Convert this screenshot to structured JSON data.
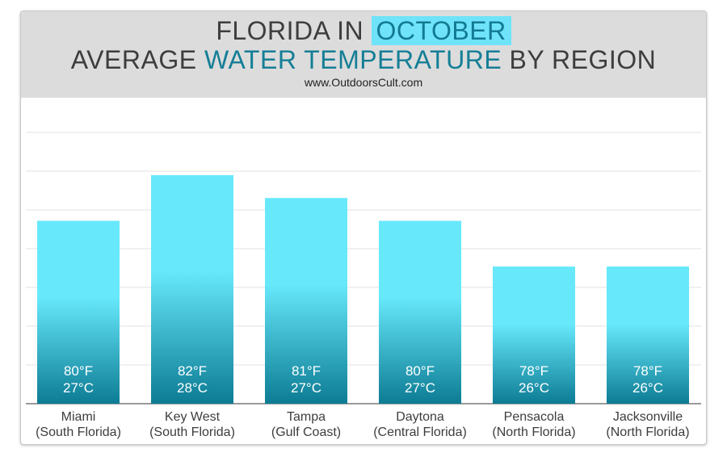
{
  "header": {
    "title_line1_pre": "FLORIDA IN ",
    "title_line1_highlight": "OCTOBER",
    "title_line2_pre": "AVERAGE ",
    "title_line2_accent": "WATER TEMPERATURE",
    "title_line2_post": " BY REGION",
    "website": "www.OutdoorsCult.com"
  },
  "colors": {
    "header_bg": "#dcdcdc",
    "highlight_bg": "#6fe3f9",
    "accent_text": "#147e96",
    "bar_top": "#67e8fb",
    "bar_bottom": "#0c7c94"
  },
  "chart_data": {
    "type": "bar",
    "categories": [
      [
        "Miami",
        "(South Florida)"
      ],
      [
        "Key West",
        "(South Florida)"
      ],
      [
        "Tampa",
        "(Gulf Coast)"
      ],
      [
        "Daytona",
        "(Central Florida)"
      ],
      [
        "Pensacola",
        "(North Florida)"
      ],
      [
        "Jacksonville",
        "(North Florida)"
      ]
    ],
    "values": [
      80,
      82,
      81,
      80,
      78,
      78
    ],
    "value_labels_f": [
      "80°F",
      "82°F",
      "81°F",
      "80°F",
      "78°F",
      "78°F"
    ],
    "value_labels_c": [
      "27°C",
      "28°C",
      "27°C",
      "27°C",
      "26°C",
      "26°C"
    ],
    "ylim": [
      72,
      85
    ],
    "grid": true,
    "xlabel": "",
    "ylabel": ""
  }
}
